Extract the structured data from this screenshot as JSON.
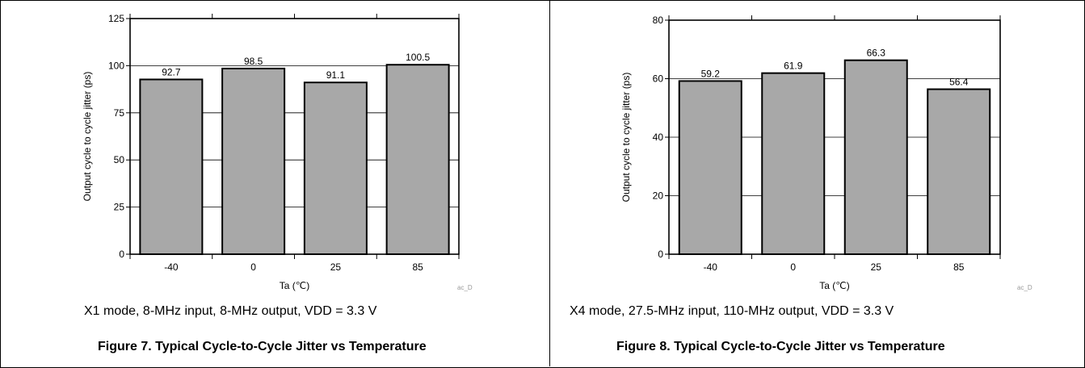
{
  "colors": {
    "bar_fill": "#a8a8a8",
    "bar_stroke": "#000000",
    "grid": "#000000",
    "tag": "#999999"
  },
  "charts": [
    {
      "caption": "X1 mode, 8-MHz input, 8-MHz output, VDD = 3.3 V",
      "figure_title": "Figure 7. Typical Cycle-to-Cycle Jitter vs Temperature",
      "tag": "ac_D"
    },
    {
      "caption": "X4 mode, 27.5-MHz input, 110-MHz output, VDD = 3.3 V",
      "figure_title": "Figure 8. Typical Cycle-to-Cycle Jitter vs Temperature",
      "tag": "ac_D"
    }
  ],
  "chart_data": [
    {
      "type": "bar",
      "categories": [
        "-40",
        "0",
        "25",
        "85"
      ],
      "values": [
        92.7,
        98.5,
        91.1,
        100.5
      ],
      "value_labels": [
        "92.7",
        "98.5",
        "91.1",
        "100.5"
      ],
      "xlabel": "Ta (℃)",
      "ylabel": "Output cycle to cycle jitter (ps)",
      "ylim": [
        0,
        125
      ],
      "yticks": [
        "0",
        "25",
        "50",
        "75",
        "100",
        "125"
      ],
      "grid": true
    },
    {
      "type": "bar",
      "categories": [
        "-40",
        "0",
        "25",
        "85"
      ],
      "values": [
        59.2,
        61.9,
        66.3,
        56.4
      ],
      "value_labels": [
        "59.2",
        "61.9",
        "66.3",
        "56.4"
      ],
      "xlabel": "Ta (℃)",
      "ylabel": "Output cycle to cycle jitter (ps)",
      "ylim": [
        0,
        80
      ],
      "yticks": [
        "0",
        "20",
        "40",
        "60",
        "80"
      ],
      "grid": true
    }
  ]
}
